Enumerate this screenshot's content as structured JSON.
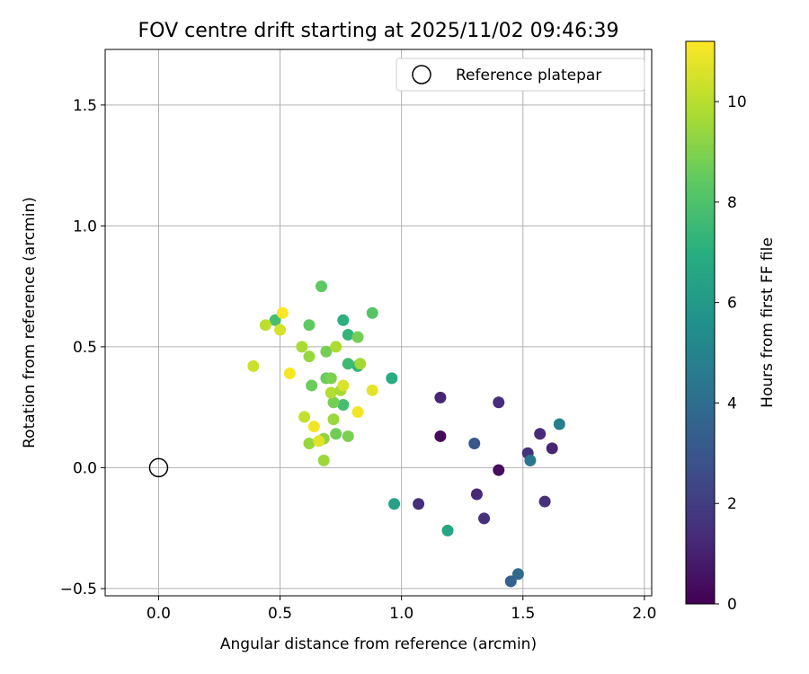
{
  "chart_data": {
    "type": "scatter",
    "title": "FOV centre drift starting at 2025/11/02 09:46:39",
    "xlabel": "Angular distance from reference (arcmin)",
    "ylabel": "Rotation from reference (arcmin)",
    "xlim": [
      -0.22,
      2.03
    ],
    "ylim": [
      -0.53,
      1.73
    ],
    "xticks": [
      "0.0",
      "0.5",
      "1.0",
      "1.5",
      "2.0"
    ],
    "xtick_values": [
      0.0,
      0.5,
      1.0,
      1.5,
      2.0
    ],
    "yticks": [
      "−0.5",
      "0.0",
      "0.5",
      "1.0",
      "1.5"
    ],
    "ytick_values": [
      -0.5,
      0.0,
      0.5,
      1.0,
      1.5
    ],
    "grid": true,
    "legend": {
      "placement": "top-right",
      "label": "Reference platepar"
    },
    "reference_point": {
      "x": 0.0,
      "y": 0.0
    },
    "colorbar": {
      "label": "Hours from first FF file",
      "range": [
        0,
        11.2
      ],
      "ticks": [
        "0",
        "2",
        "4",
        "6",
        "8",
        "10"
      ],
      "tick_values": [
        0,
        2,
        4,
        6,
        8,
        10
      ],
      "colormap": "viridis"
    },
    "points": [
      {
        "x": 1.16,
        "y": 0.13,
        "h": 0.3
      },
      {
        "x": 1.4,
        "y": -0.01,
        "h": 0.4
      },
      {
        "x": 1.16,
        "y": 0.29,
        "h": 1.2
      },
      {
        "x": 1.07,
        "y": -0.15,
        "h": 1.4
      },
      {
        "x": 1.31,
        "y": -0.11,
        "h": 1.3
      },
      {
        "x": 1.34,
        "y": -0.21,
        "h": 1.5
      },
      {
        "x": 1.4,
        "y": 0.27,
        "h": 1.4
      },
      {
        "x": 1.52,
        "y": 0.06,
        "h": 1.6
      },
      {
        "x": 1.57,
        "y": 0.14,
        "h": 1.3
      },
      {
        "x": 1.62,
        "y": 0.08,
        "h": 1.2
      },
      {
        "x": 1.59,
        "y": -0.14,
        "h": 1.5
      },
      {
        "x": 1.3,
        "y": 0.1,
        "h": 3.0
      },
      {
        "x": 1.45,
        "y": -0.47,
        "h": 3.5
      },
      {
        "x": 1.48,
        "y": -0.44,
        "h": 3.9
      },
      {
        "x": 1.53,
        "y": 0.03,
        "h": 4.4
      },
      {
        "x": 1.65,
        "y": 0.18,
        "h": 4.8
      },
      {
        "x": 0.97,
        "y": -0.15,
        "h": 6.4
      },
      {
        "x": 1.19,
        "y": -0.26,
        "h": 6.6
      },
      {
        "x": 0.96,
        "y": 0.37,
        "h": 6.9
      },
      {
        "x": 0.76,
        "y": 0.61,
        "h": 7.1
      },
      {
        "x": 0.78,
        "y": 0.55,
        "h": 7.3
      },
      {
        "x": 0.82,
        "y": 0.42,
        "h": 7.3
      },
      {
        "x": 0.78,
        "y": 0.43,
        "h": 7.6
      },
      {
        "x": 0.76,
        "y": 0.26,
        "h": 7.8
      },
      {
        "x": 0.48,
        "y": 0.61,
        "h": 7.8
      },
      {
        "x": 0.88,
        "y": 0.64,
        "h": 8.2
      },
      {
        "x": 0.67,
        "y": 0.75,
        "h": 8.4
      },
      {
        "x": 0.62,
        "y": 0.59,
        "h": 8.4
      },
      {
        "x": 0.69,
        "y": 0.37,
        "h": 8.6
      },
      {
        "x": 0.63,
        "y": 0.34,
        "h": 8.6
      },
      {
        "x": 0.69,
        "y": 0.48,
        "h": 8.8
      },
      {
        "x": 0.82,
        "y": 0.54,
        "h": 8.8
      },
      {
        "x": 0.71,
        "y": 0.37,
        "h": 8.9
      },
      {
        "x": 0.72,
        "y": 0.27,
        "h": 8.8
      },
      {
        "x": 0.73,
        "y": 0.14,
        "h": 8.7
      },
      {
        "x": 0.78,
        "y": 0.13,
        "h": 8.9
      },
      {
        "x": 0.68,
        "y": 0.12,
        "h": 9.3
      },
      {
        "x": 0.62,
        "y": 0.1,
        "h": 9.4
      },
      {
        "x": 0.72,
        "y": 0.2,
        "h": 9.5
      },
      {
        "x": 0.62,
        "y": 0.46,
        "h": 9.4
      },
      {
        "x": 0.59,
        "y": 0.5,
        "h": 9.7
      },
      {
        "x": 0.73,
        "y": 0.5,
        "h": 9.8
      },
      {
        "x": 0.71,
        "y": 0.31,
        "h": 9.9
      },
      {
        "x": 0.75,
        "y": 0.32,
        "h": 9.7
      },
      {
        "x": 0.83,
        "y": 0.43,
        "h": 9.6
      },
      {
        "x": 0.68,
        "y": 0.03,
        "h": 9.5
      },
      {
        "x": 0.6,
        "y": 0.21,
        "h": 10.2
      },
      {
        "x": 0.44,
        "y": 0.59,
        "h": 10.1
      },
      {
        "x": 0.39,
        "y": 0.42,
        "h": 10.3
      },
      {
        "x": 0.5,
        "y": 0.57,
        "h": 10.5
      },
      {
        "x": 0.76,
        "y": 0.34,
        "h": 10.6
      },
      {
        "x": 0.66,
        "y": 0.11,
        "h": 10.7
      },
      {
        "x": 0.88,
        "y": 0.32,
        "h": 10.8
      },
      {
        "x": 0.64,
        "y": 0.17,
        "h": 11.0
      },
      {
        "x": 0.82,
        "y": 0.23,
        "h": 11.0
      },
      {
        "x": 0.54,
        "y": 0.39,
        "h": 11.1
      },
      {
        "x": 0.51,
        "y": 0.64,
        "h": 11.2
      }
    ]
  }
}
